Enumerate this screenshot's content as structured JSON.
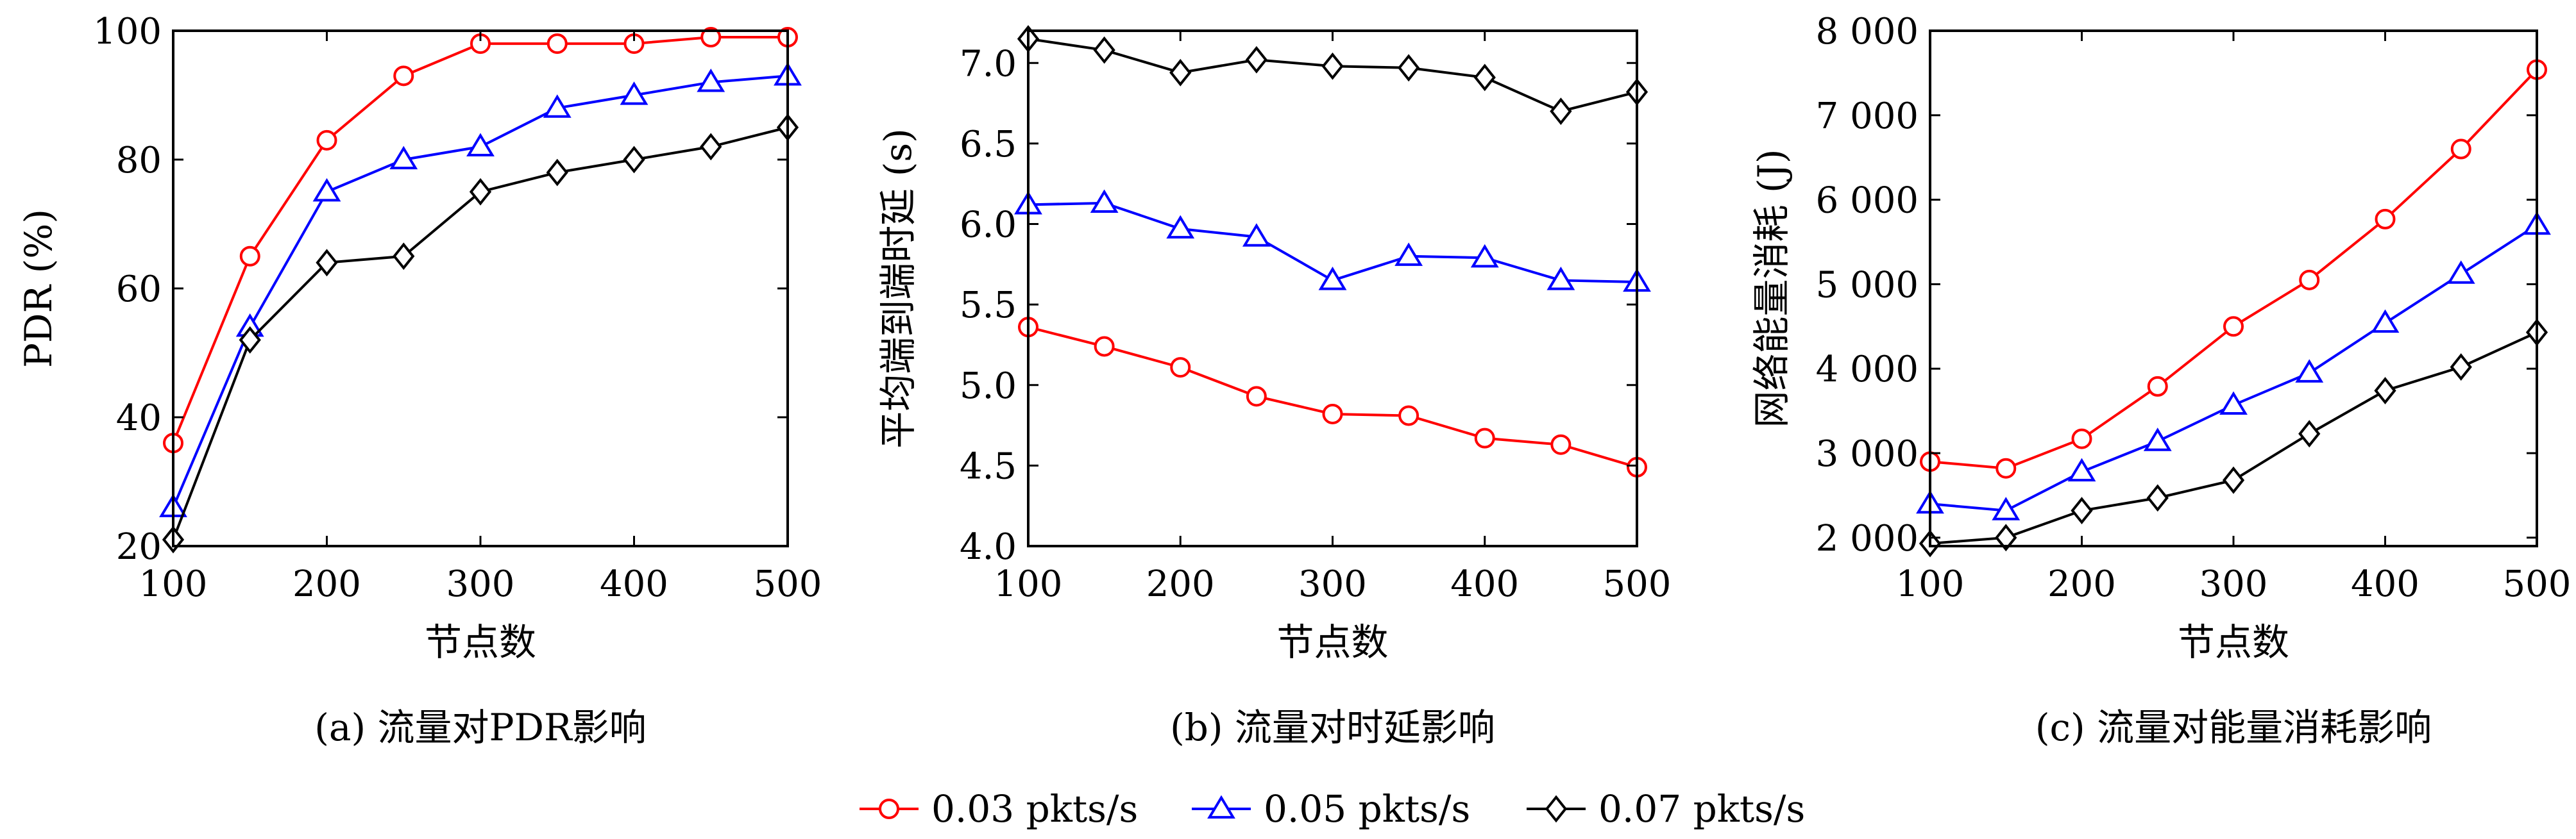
{
  "legend": {
    "items": [
      {
        "label": "0.03 pkts/s",
        "color": "#ff0000",
        "marker": "circle"
      },
      {
        "label": "0.05 pkts/s",
        "color": "#0000ff",
        "marker": "triangle"
      },
      {
        "label": "0.07 pkts/s",
        "color": "#000000",
        "marker": "diamond"
      }
    ]
  },
  "chart_data": [
    {
      "type": "line",
      "caption": "(a) 流量对PDR影响",
      "xlabel": "节点数",
      "ylabel": "PDR (%)",
      "xlim": [
        100,
        500
      ],
      "ylim": [
        20,
        100
      ],
      "xticks": [
        100,
        200,
        300,
        400,
        500
      ],
      "xtick_labels": [
        "100",
        "200",
        "300",
        "400",
        "500"
      ],
      "yticks": [
        20,
        40,
        60,
        80,
        100
      ],
      "ytick_labels": [
        "20",
        "40",
        "60",
        "80",
        "100"
      ],
      "grid": false,
      "x": [
        100,
        150,
        200,
        250,
        300,
        350,
        400,
        450,
        500
      ],
      "series": [
        {
          "name": "0.03 pkts/s",
          "values": [
            36,
            65,
            83,
            93,
            98,
            98,
            98,
            99,
            99
          ]
        },
        {
          "name": "0.05 pkts/s",
          "values": [
            26,
            54,
            75,
            80,
            82,
            88,
            90,
            92,
            93
          ]
        },
        {
          "name": "0.07 pkts/s",
          "values": [
            21,
            52,
            64,
            65,
            75,
            78,
            80,
            82,
            85
          ]
        }
      ]
    },
    {
      "type": "line",
      "caption": "(b) 流量对时延影响",
      "xlabel": "节点数",
      "ylabel": "平均端到端时延 (s)",
      "xlim": [
        100,
        500
      ],
      "ylim": [
        4.0,
        7.2
      ],
      "xticks": [
        100,
        200,
        300,
        400,
        500
      ],
      "xtick_labels": [
        "100",
        "200",
        "300",
        "400",
        "500"
      ],
      "yticks": [
        4.0,
        4.5,
        5.0,
        5.5,
        6.0,
        6.5,
        7.0
      ],
      "ytick_labels": [
        "4.0",
        "4.5",
        "5.0",
        "5.5",
        "6.0",
        "6.5",
        "7.0"
      ],
      "grid": false,
      "x": [
        100,
        150,
        200,
        250,
        300,
        350,
        400,
        450,
        500
      ],
      "series": [
        {
          "name": "0.03 pkts/s",
          "values": [
            5.36,
            5.24,
            5.11,
            4.93,
            4.82,
            4.81,
            4.67,
            4.63,
            4.49
          ]
        },
        {
          "name": "0.05 pkts/s",
          "values": [
            6.12,
            6.13,
            5.97,
            5.92,
            5.65,
            5.8,
            5.79,
            5.65,
            5.64
          ]
        },
        {
          "name": "0.07 pkts/s",
          "values": [
            7.15,
            7.08,
            6.94,
            7.02,
            6.98,
            6.97,
            6.91,
            6.7,
            6.82
          ]
        }
      ]
    },
    {
      "type": "line",
      "caption": "(c) 流量对能量消耗影响",
      "xlabel": "节点数",
      "ylabel": "网络能量消耗 (J)",
      "xlim": [
        100,
        500
      ],
      "ylim": [
        1900,
        8000
      ],
      "xticks": [
        100,
        200,
        300,
        400,
        500
      ],
      "xtick_labels": [
        "100",
        "200",
        "300",
        "400",
        "500"
      ],
      "yticks": [
        2000,
        3000,
        4000,
        5000,
        6000,
        7000,
        8000
      ],
      "ytick_labels": [
        "2 000",
        "3 000",
        "4 000",
        "5 000",
        "6 000",
        "7 000",
        "8 000"
      ],
      "grid": false,
      "x": [
        100,
        150,
        200,
        250,
        300,
        350,
        400,
        450,
        500
      ],
      "series": [
        {
          "name": "0.03 pkts/s",
          "values": [
            2900,
            2820,
            3170,
            3790,
            4500,
            5050,
            5770,
            6600,
            7540
          ]
        },
        {
          "name": "0.05 pkts/s",
          "values": [
            2400,
            2320,
            2780,
            3140,
            3570,
            3950,
            4540,
            5120,
            5700
          ]
        },
        {
          "name": "0.07 pkts/s",
          "values": [
            1930,
            2000,
            2320,
            2470,
            2680,
            3230,
            3740,
            4020,
            4430
          ]
        }
      ]
    }
  ]
}
